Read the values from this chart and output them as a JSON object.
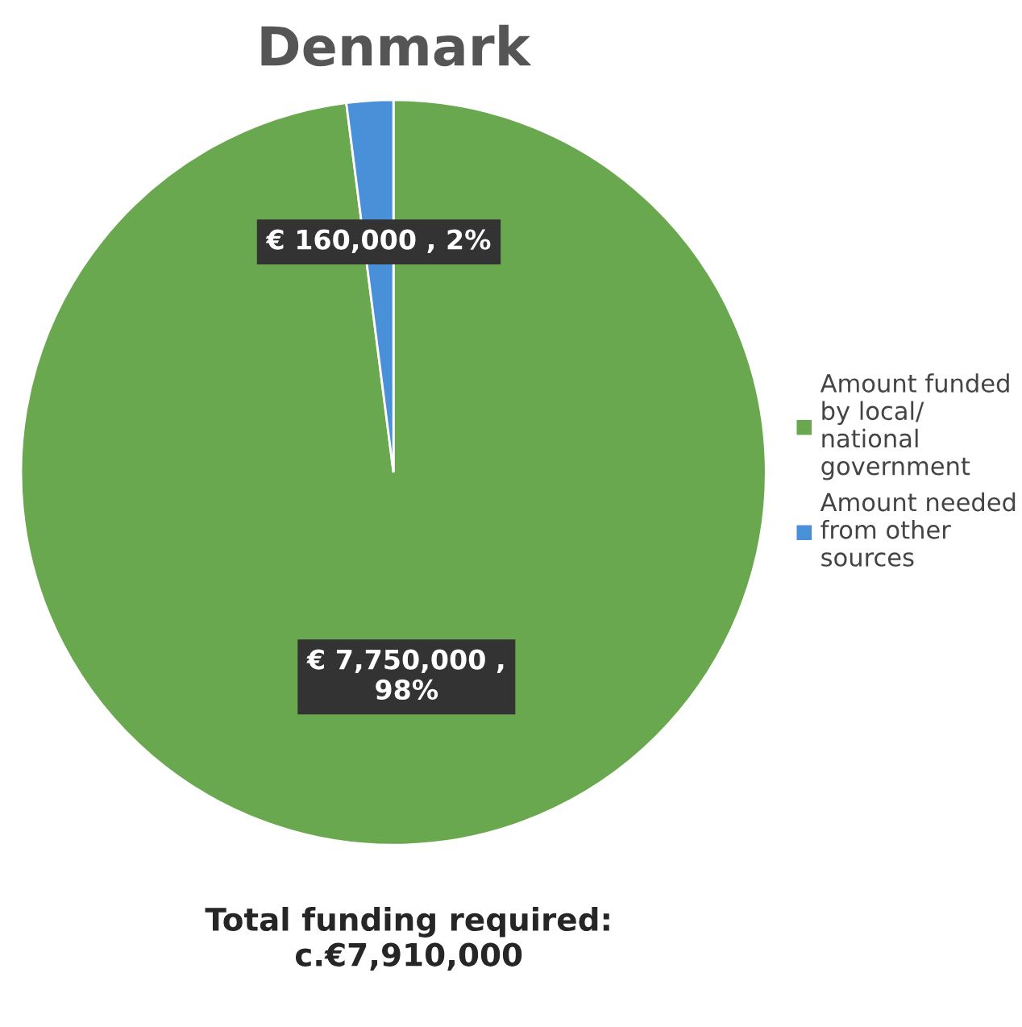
{
  "chart_data": {
    "type": "pie",
    "title": "Denmark",
    "categories": [
      "Amount funded by local/ national government",
      "Amount needed from other sources"
    ],
    "values": [
      7750000,
      160000
    ],
    "colors": [
      "#6aa84f",
      "#4a90d9"
    ],
    "value_labels": [
      "€ 7,750,000 , 98%",
      "€ 160,000 , 2%"
    ],
    "legend": "right",
    "annotations": [
      "Total funding required: c.€7,910,000"
    ]
  }
}
